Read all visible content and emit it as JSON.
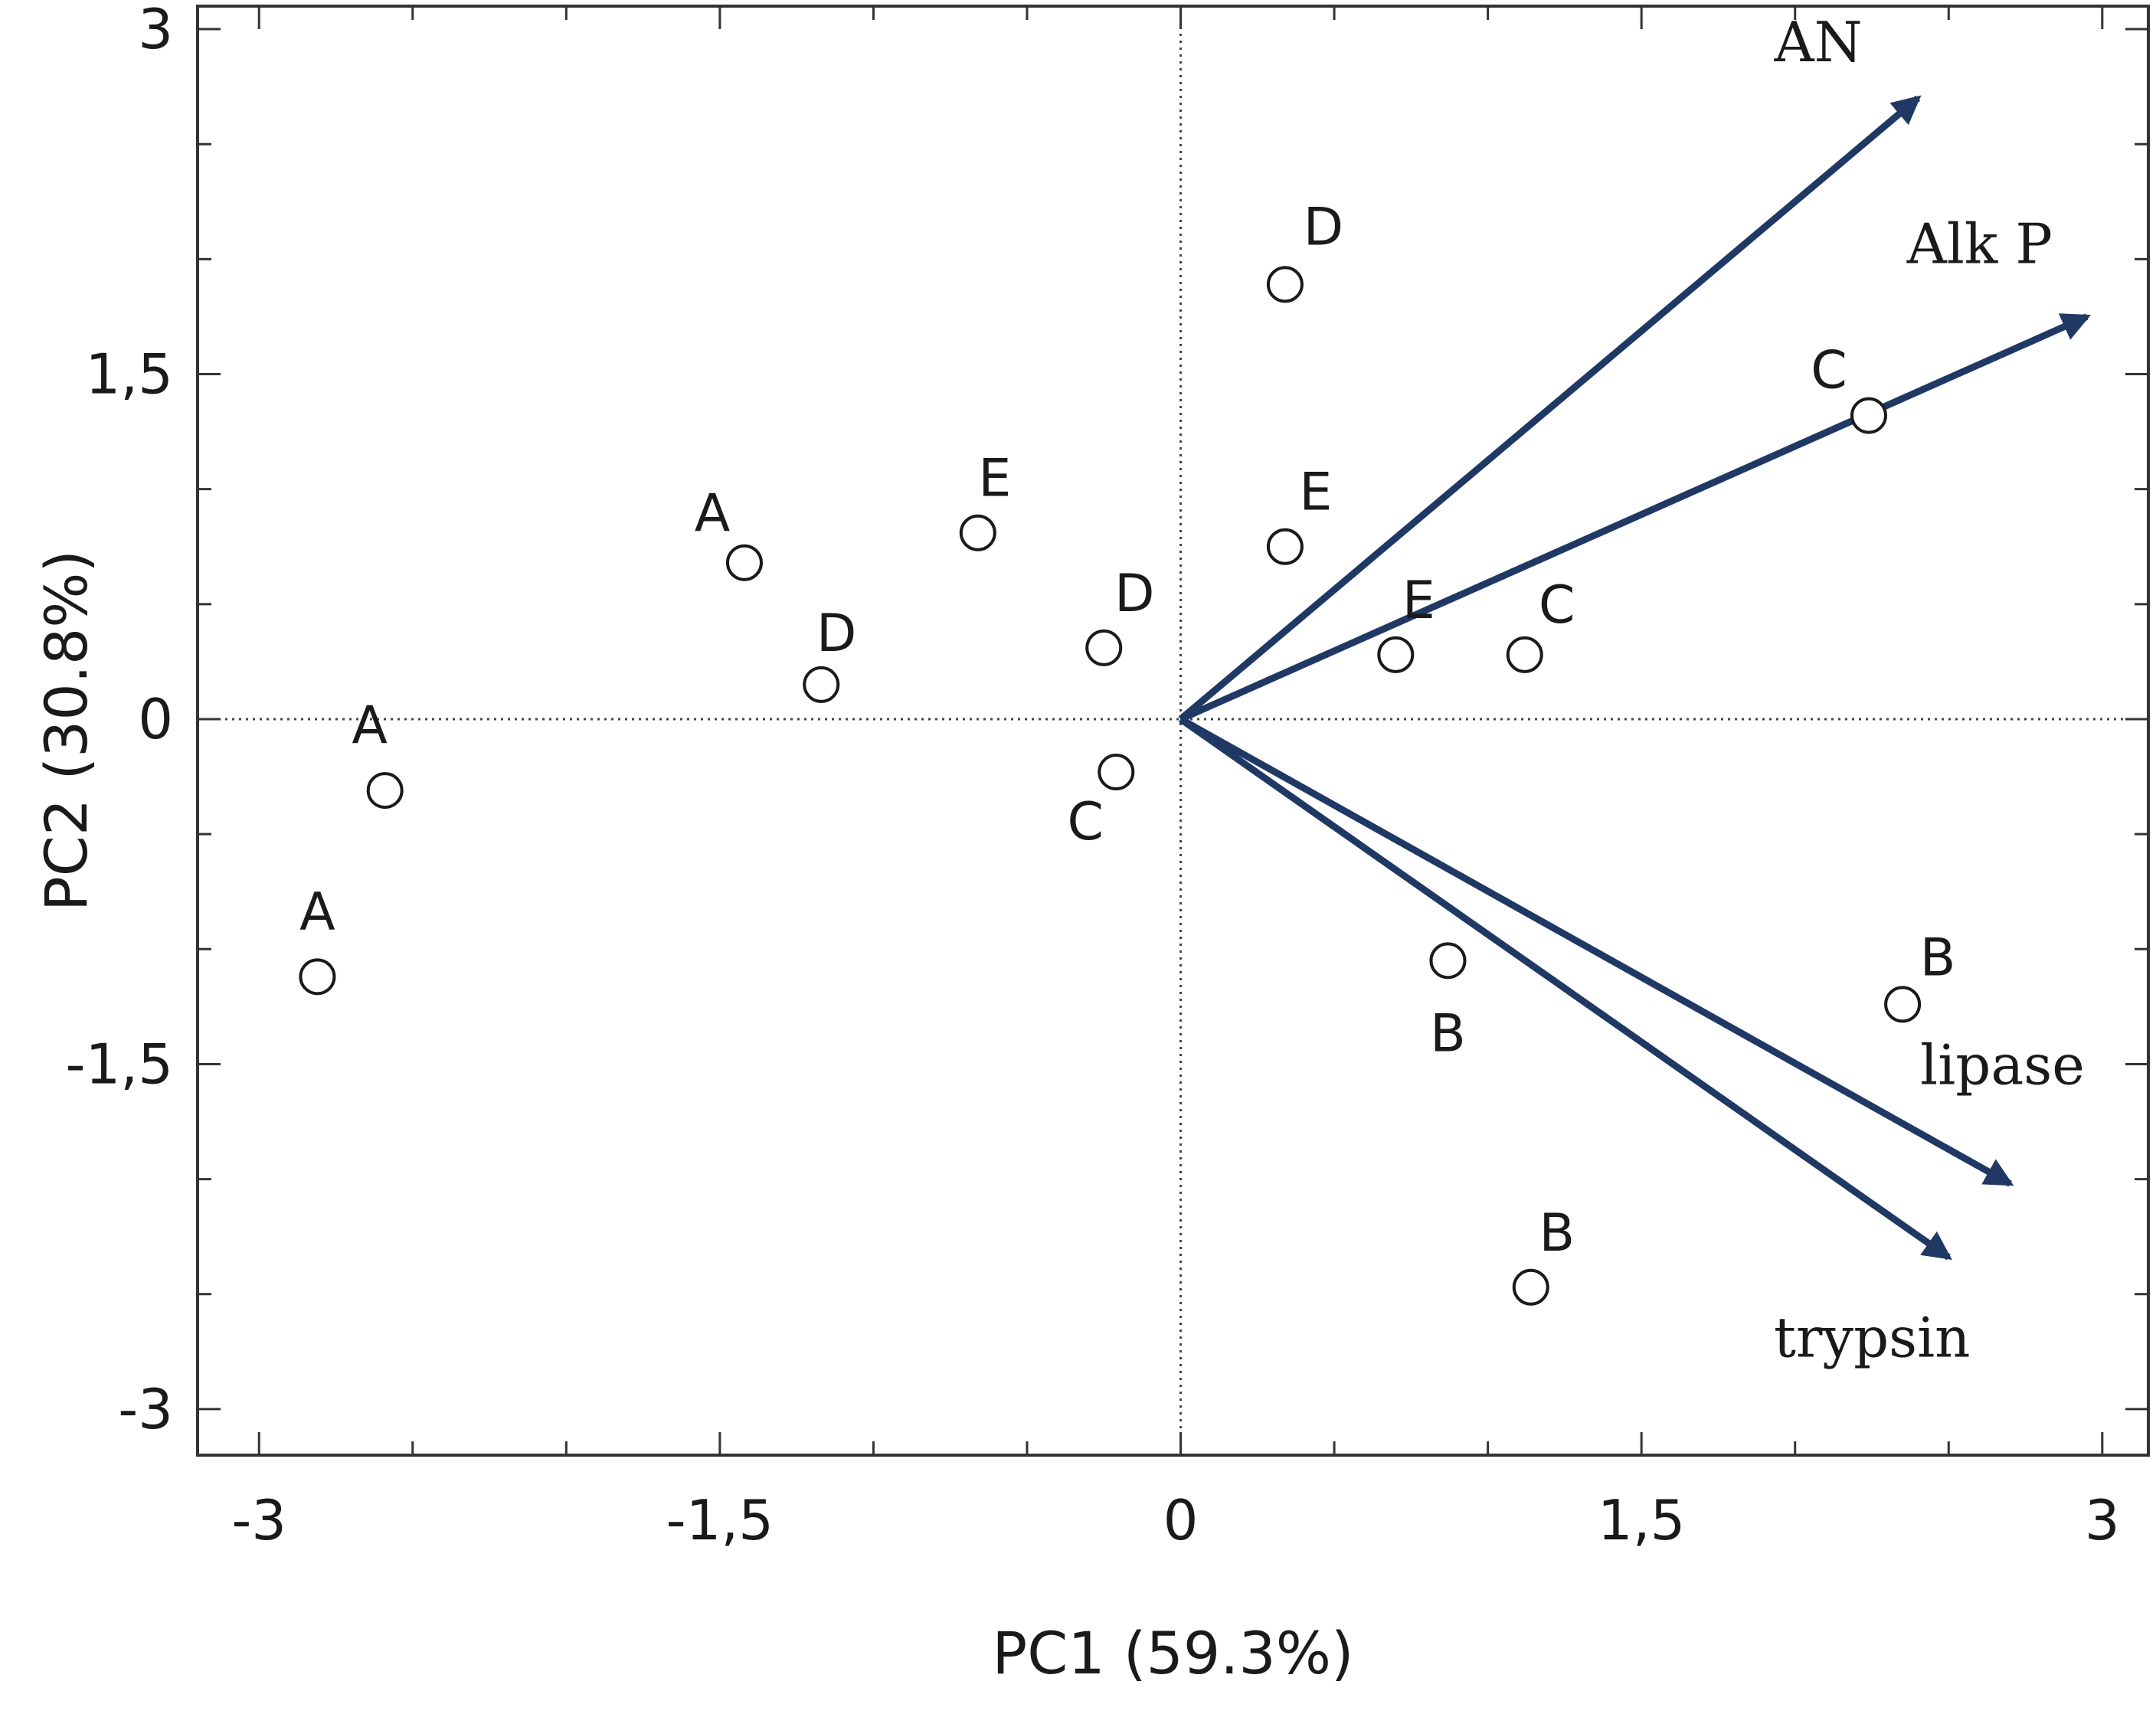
{
  "chart_data": {
    "type": "scatter",
    "subtype": "pca-biplot",
    "title": "",
    "xlabel": "PC1 (59.3%)",
    "ylabel": "PC2 (30.8%)",
    "xlim": [
      -3.2,
      3.15
    ],
    "ylim": [
      -3.2,
      3.1
    ],
    "xticks": [
      -3,
      -1.5,
      0,
      1.5,
      3
    ],
    "xtick_labels": [
      "-3",
      "-1,5",
      "0",
      "1,5",
      "3"
    ],
    "yticks": [
      -3,
      -1.5,
      0,
      1.5,
      3
    ],
    "ytick_labels": [
      "-3",
      "-1,5",
      "0",
      "1,5",
      "3"
    ],
    "grid": false,
    "zero_lines": "dotted",
    "colors": {
      "vector": "#1f3864",
      "marker": "#1a1a1a",
      "frame": "#333333"
    },
    "points": [
      {
        "label": "A",
        "x": -2.81,
        "y": -1.12
      },
      {
        "label": "A",
        "x": -2.59,
        "y": -0.31
      },
      {
        "label": "A",
        "x": -1.42,
        "y": 0.68
      },
      {
        "label": "D",
        "x": -1.17,
        "y": 0.15
      },
      {
        "label": "E",
        "x": -0.66,
        "y": 0.81
      },
      {
        "label": "D",
        "x": -0.25,
        "y": 0.31
      },
      {
        "label": "C",
        "x": -0.21,
        "y": -0.23
      },
      {
        "label": "D",
        "x": 0.34,
        "y": 1.89
      },
      {
        "label": "E",
        "x": 0.34,
        "y": 0.75
      },
      {
        "label": "E",
        "x": 0.7,
        "y": 0.28
      },
      {
        "label": "C",
        "x": 1.12,
        "y": 0.28
      },
      {
        "label": "C",
        "x": 2.24,
        "y": 1.32
      },
      {
        "label": "B",
        "x": 0.87,
        "y": -1.05
      },
      {
        "label": "B",
        "x": 2.35,
        "y": -1.24
      },
      {
        "label": "B",
        "x": 1.14,
        "y": -2.47
      }
    ],
    "vectors": [
      {
        "name": "AN",
        "x": 2.4,
        "y": 2.7
      },
      {
        "name": "Alk P",
        "x": 2.95,
        "y": 1.75
      },
      {
        "name": "lipase",
        "x": 2.7,
        "y": -2.02
      },
      {
        "name": "trypsin",
        "x": 2.5,
        "y": -2.34
      }
    ]
  }
}
